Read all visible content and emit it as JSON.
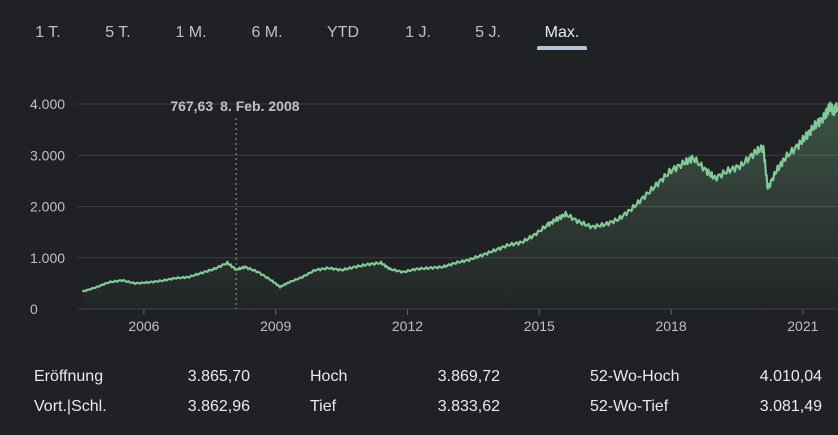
{
  "tabs": [
    {
      "label": "1 T.",
      "active": false
    },
    {
      "label": "5 T.",
      "active": false
    },
    {
      "label": "1 M.",
      "active": false
    },
    {
      "label": "6 M.",
      "active": false
    },
    {
      "label": "YTD",
      "active": false
    },
    {
      "label": "1 J.",
      "active": false
    },
    {
      "label": "5 J.",
      "active": false
    },
    {
      "label": "Max.",
      "active": true
    }
  ],
  "tooltip": {
    "value": "767,63",
    "date": "8. Feb. 2008"
  },
  "colors": {
    "line": "#81c995",
    "grid": "#3c4043",
    "background": "#202124",
    "text": "#bdc1c6"
  },
  "chart_data": {
    "type": "line",
    "ylim": [
      0,
      4000
    ],
    "xlim": [
      2004.5,
      2021.8
    ],
    "yticks": [
      0,
      1000,
      2000,
      3000,
      4000
    ],
    "ytick_labels": [
      "0",
      "1.000",
      "2.000",
      "3.000",
      "4.000"
    ],
    "xticks": [
      2006,
      2009,
      2012,
      2015,
      2018,
      2021
    ],
    "xtick_labels": [
      "2006",
      "2009",
      "2012",
      "2015",
      "2018",
      "2021"
    ],
    "grid": true,
    "series": [
      {
        "points": [
          [
            2004.6,
            340
          ],
          [
            2004.9,
            420
          ],
          [
            2005.2,
            520
          ],
          [
            2005.5,
            560
          ],
          [
            2005.8,
            500
          ],
          [
            2006.1,
            520
          ],
          [
            2006.4,
            550
          ],
          [
            2006.7,
            600
          ],
          [
            2007.0,
            620
          ],
          [
            2007.3,
            700
          ],
          [
            2007.6,
            780
          ],
          [
            2007.9,
            900
          ],
          [
            2008.1,
            767
          ],
          [
            2008.3,
            820
          ],
          [
            2008.6,
            720
          ],
          [
            2008.9,
            560
          ],
          [
            2009.1,
            430
          ],
          [
            2009.3,
            520
          ],
          [
            2009.6,
            620
          ],
          [
            2009.9,
            760
          ],
          [
            2010.2,
            800
          ],
          [
            2010.5,
            760
          ],
          [
            2010.8,
            820
          ],
          [
            2011.1,
            870
          ],
          [
            2011.4,
            900
          ],
          [
            2011.6,
            780
          ],
          [
            2011.9,
            720
          ],
          [
            2012.2,
            780
          ],
          [
            2012.5,
            800
          ],
          [
            2012.8,
            820
          ],
          [
            2013.1,
            900
          ],
          [
            2013.4,
            960
          ],
          [
            2013.7,
            1050
          ],
          [
            2014.0,
            1150
          ],
          [
            2014.3,
            1250
          ],
          [
            2014.6,
            1300
          ],
          [
            2014.9,
            1450
          ],
          [
            2015.2,
            1650
          ],
          [
            2015.4,
            1750
          ],
          [
            2015.6,
            1850
          ],
          [
            2015.9,
            1700
          ],
          [
            2016.2,
            1600
          ],
          [
            2016.5,
            1650
          ],
          [
            2016.8,
            1750
          ],
          [
            2017.1,
            1950
          ],
          [
            2017.4,
            2200
          ],
          [
            2017.7,
            2450
          ],
          [
            2018.0,
            2700
          ],
          [
            2018.3,
            2850
          ],
          [
            2018.5,
            2950
          ],
          [
            2018.8,
            2700
          ],
          [
            2019.0,
            2550
          ],
          [
            2019.3,
            2700
          ],
          [
            2019.6,
            2800
          ],
          [
            2019.9,
            3050
          ],
          [
            2020.1,
            3150
          ],
          [
            2020.2,
            2350
          ],
          [
            2020.4,
            2700
          ],
          [
            2020.6,
            2950
          ],
          [
            2020.9,
            3200
          ],
          [
            2021.1,
            3400
          ],
          [
            2021.3,
            3600
          ],
          [
            2021.5,
            3750
          ],
          [
            2021.6,
            3950
          ],
          [
            2021.7,
            3870
          ],
          [
            2021.8,
            3950
          ]
        ]
      }
    ]
  },
  "stats": [
    {
      "label": "Eröffnung",
      "value": "3.865,70"
    },
    {
      "label": "Vort.|Schl.",
      "value": "3.862,96"
    },
    {
      "label": "Hoch",
      "value": "3.869,72"
    },
    {
      "label": "Tief",
      "value": "3.833,62"
    },
    {
      "label": "52-Wo-Hoch",
      "value": "4.010,04"
    },
    {
      "label": "52-Wo-Tief",
      "value": "3.081,49"
    }
  ]
}
